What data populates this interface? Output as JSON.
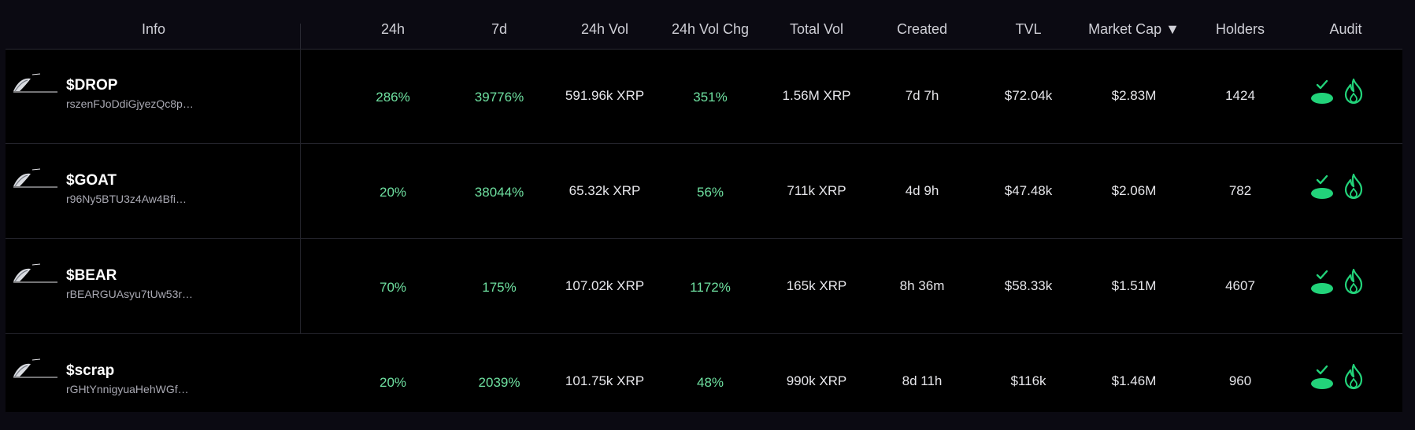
{
  "colors": {
    "positive": "#6ee0a0",
    "audit_icon": "#22d37a"
  },
  "header": {
    "info": "Info",
    "h24": "24h",
    "d7": "7d",
    "vol24": "24h Vol",
    "volchg24": "24h Vol Chg",
    "totalvol": "Total Vol",
    "created": "Created",
    "tvl": "TVL",
    "marketcap": "Market Cap ▼",
    "holders": "Holders",
    "audit": "Audit"
  },
  "rows": [
    {
      "symbol": "$DROP",
      "address": "rszenFJoDdiGjyezQc8p…",
      "h24": "286%",
      "d7": "39776%",
      "vol24": "591.96k XRP",
      "volchg24": "351%",
      "totalvol": "1.56M XRP",
      "created": "7d 7h",
      "tvl": "$72.04k",
      "marketcap": "$2.83M",
      "holders": "1424"
    },
    {
      "symbol": "$GOAT",
      "address": "r96Ny5BTU3z4Aw4Bfi…",
      "h24": "20%",
      "d7": "38044%",
      "vol24": "65.32k XRP",
      "volchg24": "56%",
      "totalvol": "711k XRP",
      "created": "4d 9h",
      "tvl": "$47.48k",
      "marketcap": "$2.06M",
      "holders": "782"
    },
    {
      "symbol": "$BEAR",
      "address": "rBEARGUAsyu7tUw53r…",
      "h24": "70%",
      "d7": "175%",
      "vol24": "107.02k XRP",
      "volchg24": "1172%",
      "totalvol": "165k XRP",
      "created": "8h 36m",
      "tvl": "$58.33k",
      "marketcap": "$1.51M",
      "holders": "4607"
    },
    {
      "symbol": "$scrap",
      "address": "rGHtYnnigyuaHehWGf…",
      "h24": "20%",
      "d7": "2039%",
      "vol24": "101.75k XRP",
      "volchg24": "48%",
      "totalvol": "990k XRP",
      "created": "8d 11h",
      "tvl": "$116k",
      "marketcap": "$1.46M",
      "holders": "960"
    }
  ]
}
